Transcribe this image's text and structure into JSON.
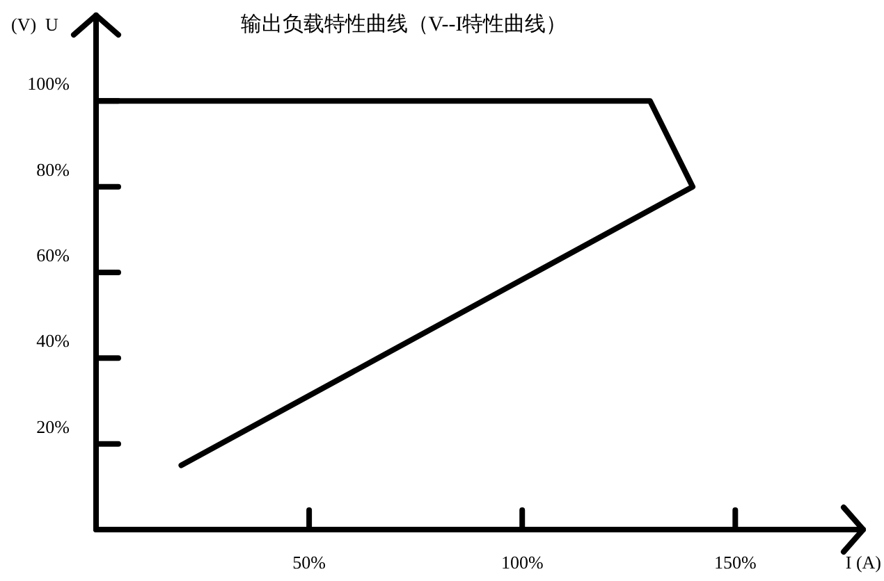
{
  "chart_data": {
    "type": "line",
    "title": "输出负载特性曲线（V--I特性曲线）",
    "xlabel": "I (A)",
    "ylabel": "(V)  U",
    "x": [
      0,
      130,
      140,
      20
    ],
    "series": [
      {
        "color": "#000000",
        "values": [
          100,
          100,
          80,
          15
        ]
      }
    ],
    "xlim": [
      0,
      180
    ],
    "ylim": [
      0,
      120
    ],
    "xticks": [
      {
        "value": 50,
        "label": "50%"
      },
      {
        "value": 100,
        "label": "100%"
      },
      {
        "value": 150,
        "label": "150%"
      }
    ],
    "yticks": [
      {
        "value": 20,
        "label": "20%"
      },
      {
        "value": 40,
        "label": "40%"
      },
      {
        "value": 60,
        "label": "60%"
      },
      {
        "value": 80,
        "label": "80%"
      },
      {
        "value": 100,
        "label": "100%"
      }
    ],
    "grid": false,
    "marker": "none",
    "line_style": "solid"
  }
}
